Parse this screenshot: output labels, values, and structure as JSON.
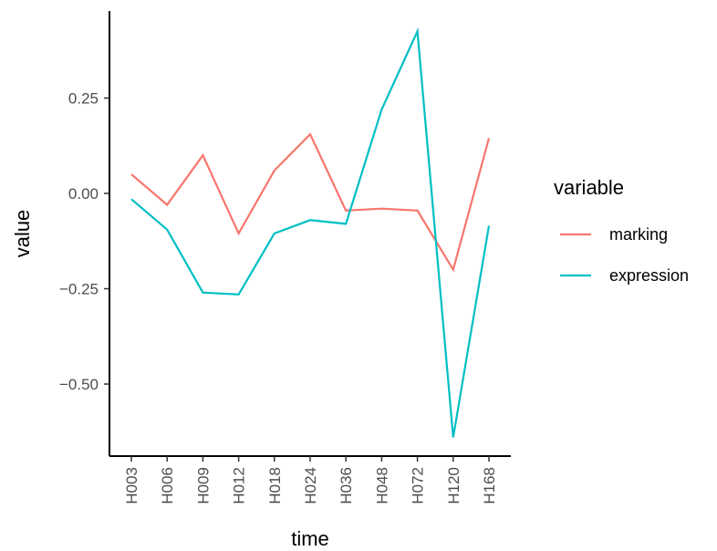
{
  "chart_data": {
    "type": "line",
    "xlabel": "time",
    "ylabel": "value",
    "categories": [
      "H003",
      "H006",
      "H009",
      "H012",
      "H018",
      "H024",
      "H036",
      "H048",
      "H072",
      "H120",
      "H168"
    ],
    "ylim": [
      -0.68,
      0.47
    ],
    "yticks": [
      0.25,
      0.0,
      -0.25,
      -0.5
    ],
    "ytick_labels": [
      "0.25",
      "0.00",
      "−0.25",
      "−0.50"
    ],
    "grid": false,
    "legend": {
      "title": "variable",
      "placement": "right"
    },
    "series": [
      {
        "name": "marking",
        "color": "#F8766D",
        "values": [
          0.05,
          -0.03,
          0.1,
          -0.105,
          0.06,
          0.155,
          -0.045,
          -0.04,
          -0.045,
          -0.2,
          0.145
        ]
      },
      {
        "name": "expression",
        "color": "#00BFC4",
        "values": [
          -0.015,
          -0.095,
          -0.26,
          -0.265,
          -0.105,
          -0.07,
          -0.08,
          0.22,
          0.425,
          -0.64,
          -0.085
        ]
      }
    ]
  }
}
